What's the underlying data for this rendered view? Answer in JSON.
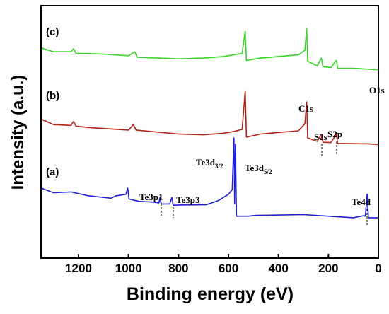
{
  "chart_data": {
    "type": "line",
    "xlabel": "Binding energy (eV)",
    "ylabel": "Intensity (a.u.)",
    "xlim": [
      1350,
      0
    ],
    "x_reversed": true,
    "xticks": [
      "1200",
      "1000",
      "800",
      "600",
      "400",
      "200",
      "0"
    ],
    "xtick_values": [
      1200,
      1000,
      800,
      600,
      400,
      200,
      0
    ],
    "ylim": [
      0,
      100
    ],
    "grid": false,
    "legend": "none",
    "series": [
      {
        "name": "(a)",
        "color": "#1f1fd6",
        "points": [
          [
            1350,
            38
          ],
          [
            1300,
            35
          ],
          [
            1230,
            35.5
          ],
          [
            1160,
            33
          ],
          [
            1070,
            31.5
          ],
          [
            1050,
            33
          ],
          [
            1010,
            34
          ],
          [
            1003,
            38
          ],
          [
            998,
            31
          ],
          [
            960,
            29.5
          ],
          [
            900,
            29
          ],
          [
            878,
            28.5
          ],
          [
            874,
            32
          ],
          [
            869,
            27.8
          ],
          [
            835,
            27.8
          ],
          [
            826,
            32
          ],
          [
            821,
            27
          ],
          [
            780,
            27.2
          ],
          [
            690,
            27.3
          ],
          [
            640,
            30
          ],
          [
            600,
            34
          ],
          [
            585,
            37
          ],
          [
            578,
            70
          ],
          [
            575,
            28
          ],
          [
            572,
            66
          ],
          [
            568,
            20
          ],
          [
            520,
            20
          ],
          [
            490,
            20.5
          ],
          [
            300,
            21
          ],
          [
            100,
            19
          ],
          [
            60,
            20.3
          ],
          [
            52,
            20
          ],
          [
            45,
            34
          ],
          [
            40,
            19
          ],
          [
            0,
            19
          ]
        ]
      },
      {
        "name": "(b)",
        "color": "#b2221a",
        "points": [
          [
            1350,
            82
          ],
          [
            1300,
            78.5
          ],
          [
            1230,
            78
          ],
          [
            1220,
            80.5
          ],
          [
            1210,
            77.5
          ],
          [
            1150,
            76.5
          ],
          [
            1050,
            75.5
          ],
          [
            1000,
            75
          ],
          [
            980,
            78.5
          ],
          [
            970,
            75
          ],
          [
            800,
            72.5
          ],
          [
            700,
            72
          ],
          [
            620,
            73
          ],
          [
            580,
            74
          ],
          [
            545,
            75.5
          ],
          [
            533,
            100
          ],
          [
            528,
            70.5
          ],
          [
            470,
            72.5
          ],
          [
            400,
            73.5
          ],
          [
            320,
            74.5
          ],
          [
            294,
            79
          ],
          [
            287,
            93
          ],
          [
            283,
            70
          ],
          [
            245,
            67.8
          ],
          [
            228,
            72
          ],
          [
            222,
            67.2
          ],
          [
            190,
            67
          ],
          [
            168,
            72.5
          ],
          [
            163,
            66.5
          ],
          [
            100,
            66.3
          ],
          [
            40,
            66.2
          ],
          [
            0,
            65.8
          ]
        ]
      },
      {
        "name": "(c)",
        "color": "#38d427",
        "points": [
          [
            1350,
            127.5
          ],
          [
            1300,
            125
          ],
          [
            1230,
            125
          ],
          [
            1220,
            127
          ],
          [
            1210,
            124
          ],
          [
            1100,
            123.5
          ],
          [
            1000,
            122.5
          ],
          [
            975,
            125
          ],
          [
            965,
            121.5
          ],
          [
            800,
            120.5
          ],
          [
            700,
            121
          ],
          [
            620,
            122
          ],
          [
            580,
            123
          ],
          [
            545,
            124
          ],
          [
            533,
            138
          ],
          [
            528,
            119.5
          ],
          [
            470,
            121
          ],
          [
            400,
            122
          ],
          [
            320,
            123
          ],
          [
            294,
            126
          ],
          [
            287,
            140
          ],
          [
            283,
            119
          ],
          [
            245,
            116
          ],
          [
            228,
            121
          ],
          [
            222,
            115.5
          ],
          [
            190,
            115
          ],
          [
            168,
            119.5
          ],
          [
            163,
            114.5
          ],
          [
            100,
            114.5
          ],
          [
            0,
            113.5
          ]
        ]
      }
    ],
    "panel_labels": [
      "(a)",
      "(b)",
      "(c)"
    ],
    "annotations": [
      {
        "text": "O1s",
        "x": 533
      },
      {
        "text": "C1s",
        "x": 285
      },
      {
        "text": "S2s",
        "x": 228
      },
      {
        "text": "S2p",
        "x": 165
      },
      {
        "text": "Te3p1",
        "x": 872
      },
      {
        "text": "Te3p3",
        "x": 824
      },
      {
        "text": "Te3d",
        "sub": "3/2",
        "x": 583
      },
      {
        "text": "Te3d",
        "sub": "5/2",
        "x": 572
      },
      {
        "text": "Te4d",
        "x": 42
      }
    ]
  }
}
